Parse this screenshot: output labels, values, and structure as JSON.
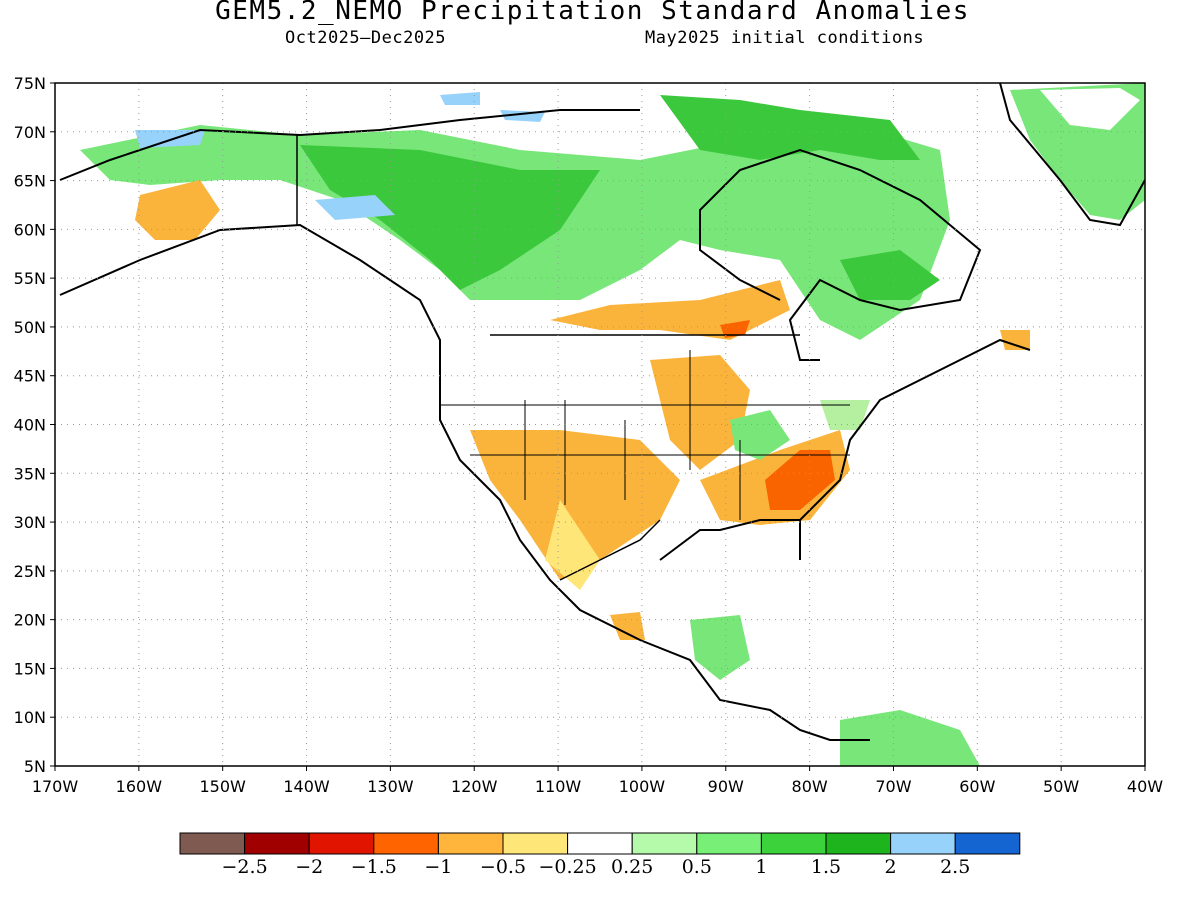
{
  "header": {
    "title": "GEM5.2_NEMO Precipitation Standard Anomalies",
    "period": "Oct2025–Dec2025",
    "init": "May2025 initial conditions"
  },
  "map": {
    "lat_labels": [
      "75N",
      "70N",
      "65N",
      "60N",
      "55N",
      "50N",
      "45N",
      "40N",
      "35N",
      "30N",
      "25N",
      "20N",
      "15N",
      "10N",
      "5N"
    ],
    "lon_labels": [
      "170W",
      "160W",
      "150W",
      "140W",
      "130W",
      "120W",
      "110W",
      "100W",
      "90W",
      "80W",
      "70W",
      "60W",
      "50W",
      "40W"
    ],
    "grid_lines": "dotted",
    "colors": {
      "green_light": "#b4f0a0",
      "green_mid": "#78e678",
      "green_dark": "#3cc83c",
      "green_deep": "#1eb41e",
      "blue_light": "#96d2fa",
      "yellow": "#ffe678",
      "orange_light": "#fab43c",
      "orange": "#fa6400",
      "coastline": "#000000"
    }
  },
  "colorbar": {
    "colors": [
      "#7f5a50",
      "#a00000",
      "#e11400",
      "#ff6400",
      "#ffb43c",
      "#ffe678",
      "#ffffff",
      "#b4faaa",
      "#78f078",
      "#3cd23c",
      "#1eb41e",
      "#96d2fa",
      "#1464d2"
    ],
    "labels": [
      "−2.5",
      "−2",
      "−1.5",
      "−1",
      "−0.5",
      "−0.25",
      "0.25",
      "0.5",
      "1",
      "1.5",
      "2",
      "2.5"
    ]
  }
}
